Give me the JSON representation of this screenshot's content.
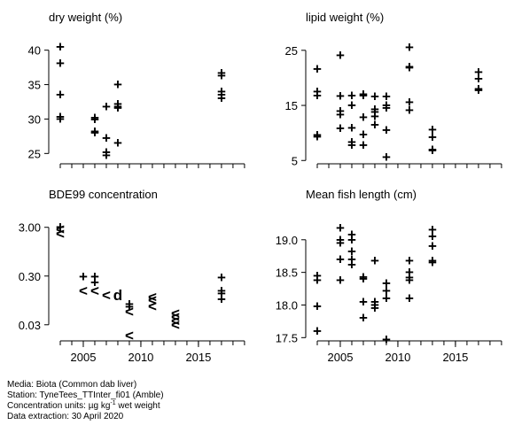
{
  "chart_data": [
    {
      "type": "scatter",
      "title": "dry weight (%)",
      "xlim": [
        2002,
        2019.7
      ],
      "ylim": [
        23.5,
        41.5
      ],
      "yticks": [
        25,
        30,
        35,
        40
      ],
      "xminor": [
        2003,
        2004,
        2005,
        2006,
        2007,
        2008,
        2009,
        2010,
        2011,
        2012,
        2013,
        2014,
        2015,
        2016,
        2017,
        2018,
        2019
      ],
      "x": [
        2003,
        2003,
        2003,
        2003,
        2003,
        2006,
        2006,
        2006,
        2006,
        2007,
        2007,
        2007,
        2007,
        2008,
        2008,
        2008,
        2008,
        2008,
        2017,
        2017,
        2017,
        2017,
        2017
      ],
      "y": [
        40.5,
        38.1,
        33.5,
        30.3,
        30.0,
        30.2,
        29.9,
        28.2,
        28.0,
        27.2,
        25.2,
        24.7,
        31.8,
        35.0,
        32.2,
        31.8,
        31.6,
        26.5,
        36.7,
        36.3,
        34.0,
        33.5,
        33.0
      ],
      "markers": [
        "+",
        "+",
        "+",
        "+",
        "+",
        "+",
        "+",
        "+",
        "+",
        "+",
        "+",
        "+",
        "+",
        "+",
        "+",
        "+",
        "+",
        "+",
        "+",
        "+",
        "+",
        "+",
        "+"
      ]
    },
    {
      "type": "scatter",
      "title": "lipid weight (%)",
      "xlim": [
        2002,
        2019.7
      ],
      "ylim": [
        4.4,
        26.9
      ],
      "yticks": [
        5,
        15,
        25
      ],
      "xminor": [
        2003,
        2004,
        2005,
        2006,
        2007,
        2008,
        2009,
        2010,
        2011,
        2012,
        2013,
        2014,
        2015,
        2016,
        2017,
        2018,
        2019
      ],
      "x": [
        2003,
        2003,
        2003,
        2003,
        2003,
        2005,
        2005,
        2005,
        2005,
        2005,
        2006,
        2006,
        2006,
        2006,
        2006,
        2007,
        2007,
        2007,
        2007,
        2007,
        2008,
        2008,
        2008,
        2008,
        2008,
        2009,
        2009,
        2009,
        2009,
        2009,
        2011,
        2011,
        2011,
        2011,
        2011,
        2013,
        2013,
        2013,
        2013,
        2017,
        2017,
        2017,
        2017
      ],
      "y": [
        21.6,
        17.5,
        16.8,
        9.6,
        9.3,
        24.1,
        16.7,
        14.0,
        13.3,
        10.8,
        16.8,
        15.0,
        10.9,
        8.3,
        7.8,
        17.0,
        16.8,
        12.8,
        9.7,
        7.8,
        16.6,
        14.3,
        13.8,
        11.5,
        13.0,
        16.6,
        15.0,
        14.5,
        10.5,
        5.6,
        25.5,
        22.0,
        21.8,
        15.6,
        14.1,
        10.6,
        9.2,
        7.0,
        6.8,
        21.0,
        19.8,
        18.0,
        17.7
      ],
      "markers": [
        "+",
        "+",
        "+",
        "+",
        "+",
        "+",
        "+",
        "+",
        "+",
        "+",
        "+",
        "+",
        "+",
        "+",
        "+",
        "+",
        "+",
        "+",
        "+",
        "+",
        "+",
        "+",
        "+",
        "+",
        "+",
        "+",
        "+",
        "+",
        "+",
        "+",
        "+",
        "+",
        "+",
        "+",
        "+",
        "+",
        "+",
        "+",
        "+",
        "+",
        "+",
        "+",
        "+"
      ]
    },
    {
      "type": "scatter",
      "title": "BDE99 concentration",
      "log": true,
      "xlim": [
        2002,
        2019.7
      ],
      "ylim": [
        0.014,
        4.9
      ],
      "yticks": [
        {
          "value": 0.03,
          "label": "0.03"
        },
        {
          "value": 0.3,
          "label": "0.30"
        },
        {
          "value": 3,
          "label": "3.00"
        }
      ],
      "xticks": [
        2005,
        2010,
        2015
      ],
      "xminor": [
        2003,
        2004,
        2005,
        2006,
        2007,
        2008,
        2009,
        2010,
        2011,
        2012,
        2013,
        2014,
        2015,
        2016,
        2017,
        2018,
        2019
      ],
      "x": [
        2003,
        2003,
        2003,
        2005,
        2005,
        2006,
        2006,
        2006,
        2007,
        2008,
        2009,
        2009,
        2009,
        2009,
        2011,
        2011,
        2011,
        2013,
        2013,
        2013,
        2013,
        2017,
        2017,
        2017,
        2017
      ],
      "y": [
        3.0,
        2.7,
        2.2,
        0.29,
        0.15,
        0.29,
        0.22,
        0.15,
        0.12,
        0.12,
        0.079,
        0.07,
        0.056,
        0.018,
        0.11,
        0.096,
        0.071,
        0.051,
        0.043,
        0.036,
        0.03,
        0.28,
        0.15,
        0.13,
        0.1
      ],
      "markers": [
        "+",
        "<",
        "<",
        "+",
        "<",
        "+",
        "+",
        "<",
        "<",
        "d",
        "+",
        "+",
        "<",
        "<",
        "<",
        "<",
        "<",
        "<",
        "<",
        "<",
        "<",
        "+",
        "+",
        "+",
        "+"
      ]
    },
    {
      "type": "scatter",
      "title": "Mean fish length (cm)",
      "xlim": [
        2002,
        2019.7
      ],
      "ylim": [
        17.45,
        19.35
      ],
      "yticks": [
        17.5,
        {
          "value": 18,
          "label": "18.0"
        },
        18.5,
        {
          "value": 19,
          "label": "19.0"
        }
      ],
      "xticks": [
        2005,
        2010,
        2015
      ],
      "xminor": [
        2003,
        2004,
        2005,
        2006,
        2007,
        2008,
        2009,
        2010,
        2011,
        2012,
        2013,
        2014,
        2015,
        2016,
        2017,
        2018,
        2019
      ],
      "x": [
        2003,
        2003,
        2003,
        2003,
        2005,
        2005,
        2005,
        2005,
        2005,
        2006,
        2006,
        2006,
        2006,
        2006,
        2007,
        2007,
        2007,
        2007,
        2008,
        2008,
        2008,
        2008,
        2009,
        2009,
        2009,
        2009,
        2011,
        2011,
        2011,
        2011,
        2011,
        2013,
        2013,
        2013,
        2013,
        2013
      ],
      "y": [
        18.45,
        18.38,
        17.98,
        17.6,
        19.18,
        19.0,
        18.95,
        18.7,
        18.38,
        19.08,
        19.0,
        18.82,
        18.7,
        18.62,
        18.43,
        18.4,
        18.05,
        17.8,
        18.68,
        18.05,
        18.0,
        17.95,
        18.33,
        18.22,
        18.1,
        17.47,
        18.68,
        18.5,
        18.42,
        18.38,
        18.1,
        19.15,
        19.05,
        18.9,
        18.68,
        18.65
      ],
      "markers": [
        "+",
        "+",
        "+",
        "+",
        "+",
        "+",
        "+",
        "+",
        "+",
        "+",
        "+",
        "+",
        "+",
        "+",
        "+",
        "+",
        "+",
        "+",
        "+",
        "+",
        "+",
        "+",
        "+",
        "+",
        "+",
        "+",
        "+",
        "+",
        "+",
        "+",
        "+",
        "+",
        "+",
        "+",
        "+",
        "+"
      ]
    }
  ],
  "footer": {
    "media": "Media: Biota (Common dab liver)",
    "station": "Station: TyneTees_TTInter_fi01 (Amble)",
    "units_prefix": "Concentration units: µg kg",
    "units_sup": "-1",
    "units_suffix": " wet weight",
    "extraction": "Data extraction: 30 April 2020"
  }
}
